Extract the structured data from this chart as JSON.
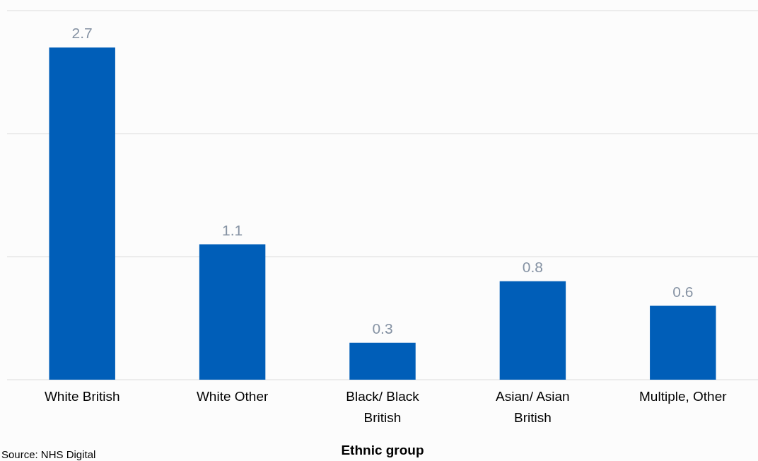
{
  "chart_data": {
    "type": "bar",
    "xlabel": "Ethnic group",
    "categories": [
      "White British",
      "White Other",
      "Black/ Black\nBritish",
      "Asian/ Asian\nBritish",
      "Multiple, Other"
    ],
    "values": [
      2.7,
      1.1,
      0.3,
      0.8,
      0.6
    ],
    "color": "#005eb8",
    "ylim": [
      0,
      3
    ],
    "yticks": [
      {
        "value": 0,
        "label": null
      },
      {
        "value": 1,
        "label": null
      },
      {
        "value": 2,
        "label": null
      },
      {
        "value": 3,
        "label": null
      }
    ],
    "tick_labels": "x",
    "grid": "y",
    "data_labels": true,
    "annotations": [
      "Source: NHS Digital"
    ]
  }
}
